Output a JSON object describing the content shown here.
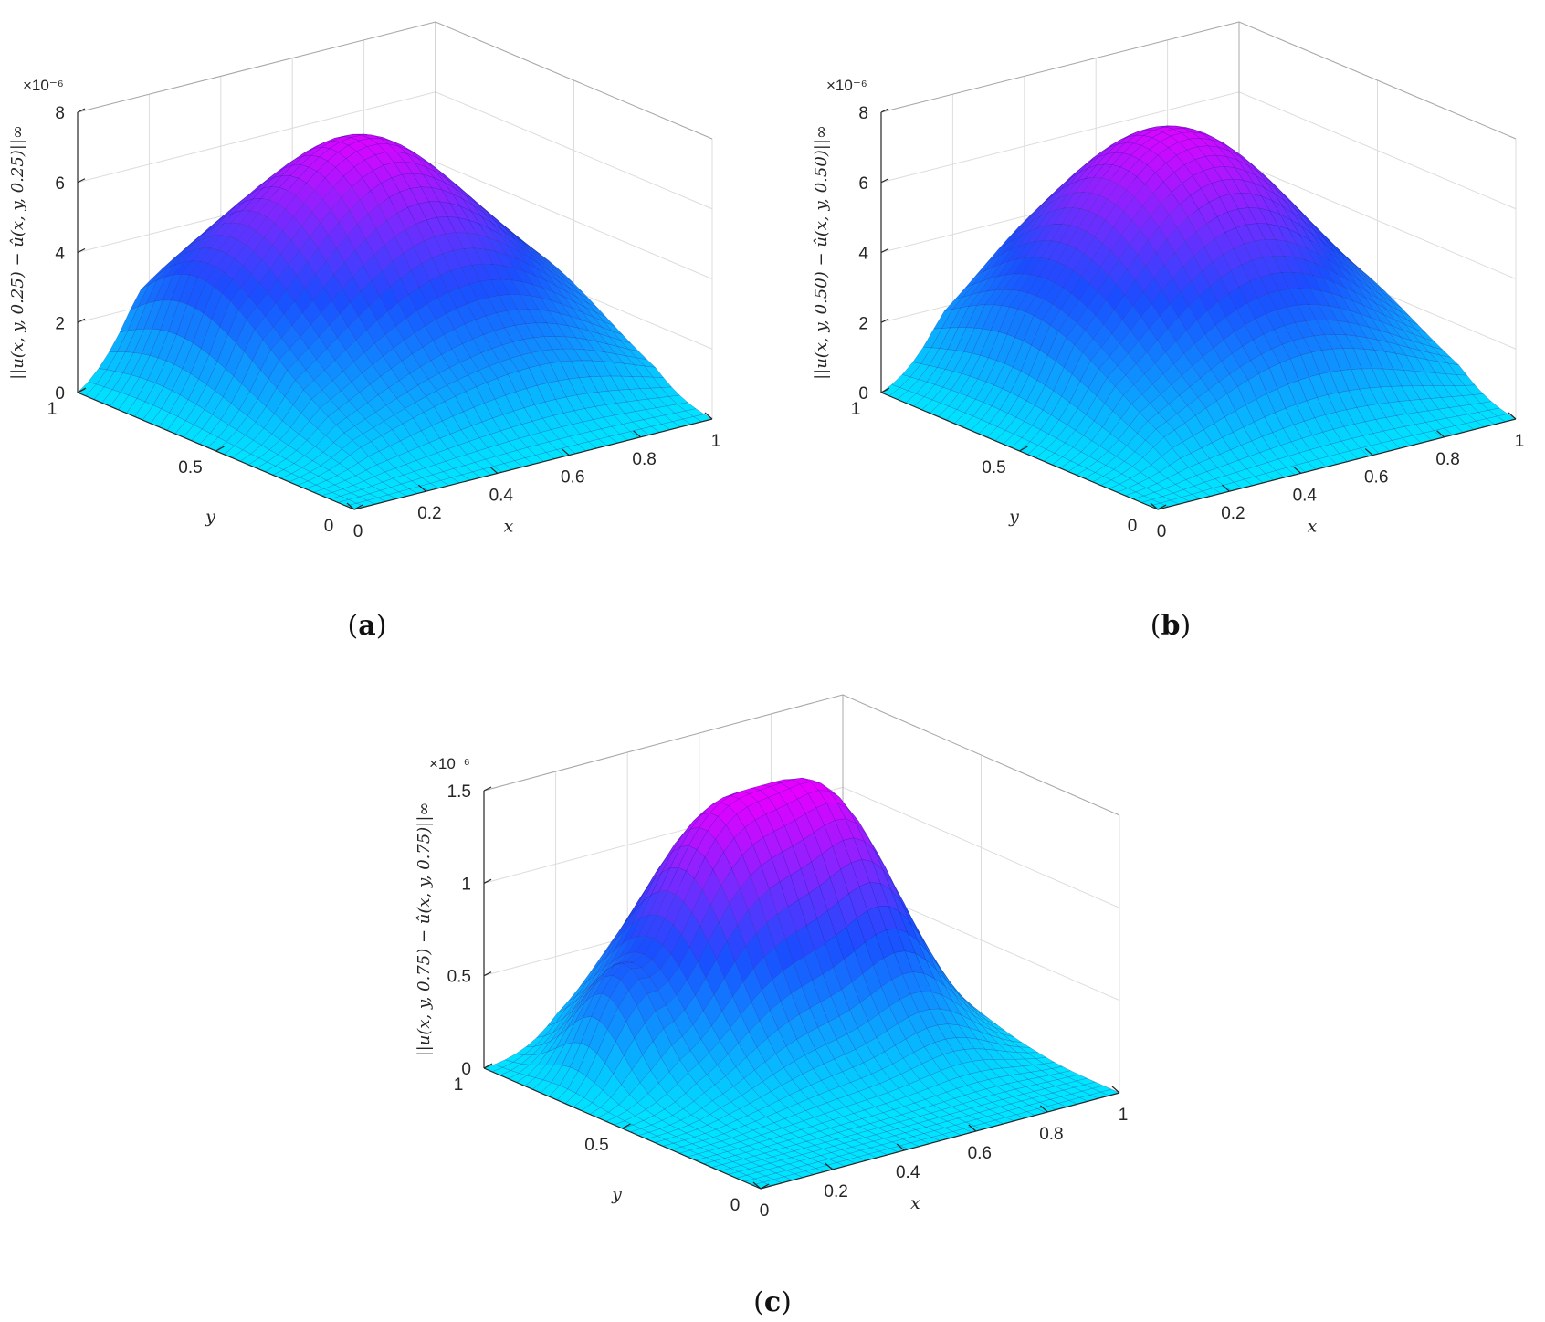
{
  "chart_data": [
    {
      "panel": "a",
      "type": "surface",
      "caption_letter": "a",
      "caption_open": "(",
      "caption_close": ")",
      "xlabel": "x",
      "ylabel": "y",
      "zlabel": "||u(x, y, 0.25) − û(x, y, 0.25)||∞",
      "zscale_multiplier": "×10⁻⁶",
      "xticks": [
        "0",
        "0.2",
        "0.4",
        "0.6",
        "0.8",
        "1"
      ],
      "yticks": [
        "0",
        "0.5",
        "1"
      ],
      "zticks": [
        "0",
        "2",
        "4",
        "6",
        "8"
      ],
      "xlim": [
        0,
        1
      ],
      "ylim": [
        0,
        1
      ],
      "zlim": [
        0,
        8
      ],
      "peak_z": 7.3,
      "colormap": [
        "#00e5ff",
        "#1a4dff",
        "#e600ff"
      ],
      "grid": true
    },
    {
      "panel": "b",
      "type": "surface",
      "caption_letter": "b",
      "caption_open": "(",
      "caption_close": ")",
      "xlabel": "x",
      "ylabel": "y",
      "zlabel": "||u(x, y, 0.50) − û(x, y, 0.50)||∞",
      "zscale_multiplier": "×10⁻⁶",
      "xticks": [
        "0",
        "0.2",
        "0.4",
        "0.6",
        "0.8",
        "1"
      ],
      "yticks": [
        "0",
        "0.5",
        "1"
      ],
      "zticks": [
        "0",
        "2",
        "4",
        "6",
        "8"
      ],
      "xlim": [
        0,
        1
      ],
      "ylim": [
        0,
        1
      ],
      "zlim": [
        0,
        8
      ],
      "peak_z": 7.6,
      "colormap": [
        "#00e5ff",
        "#1a4dff",
        "#e600ff"
      ],
      "grid": true
    },
    {
      "panel": "c",
      "type": "surface",
      "caption_letter": "c",
      "caption_open": "(",
      "caption_close": ")",
      "xlabel": "x",
      "ylabel": "y",
      "zlabel": "||u(x, y, 0.75) − û(x, y, 0.75)||∞",
      "zscale_multiplier": "×10⁻⁶",
      "xticks": [
        "0",
        "0.2",
        "0.4",
        "0.6",
        "0.8",
        "1"
      ],
      "yticks": [
        "0",
        "0.5",
        "1"
      ],
      "zticks": [
        "0",
        "0.5",
        "1",
        "1.5"
      ],
      "xlim": [
        0,
        1
      ],
      "ylim": [
        0,
        1
      ],
      "zlim": [
        0,
        1.5
      ],
      "peak_z": 1.4,
      "colormap": [
        "#00e5ff",
        "#1a4dff",
        "#e600ff"
      ],
      "grid": true
    }
  ]
}
